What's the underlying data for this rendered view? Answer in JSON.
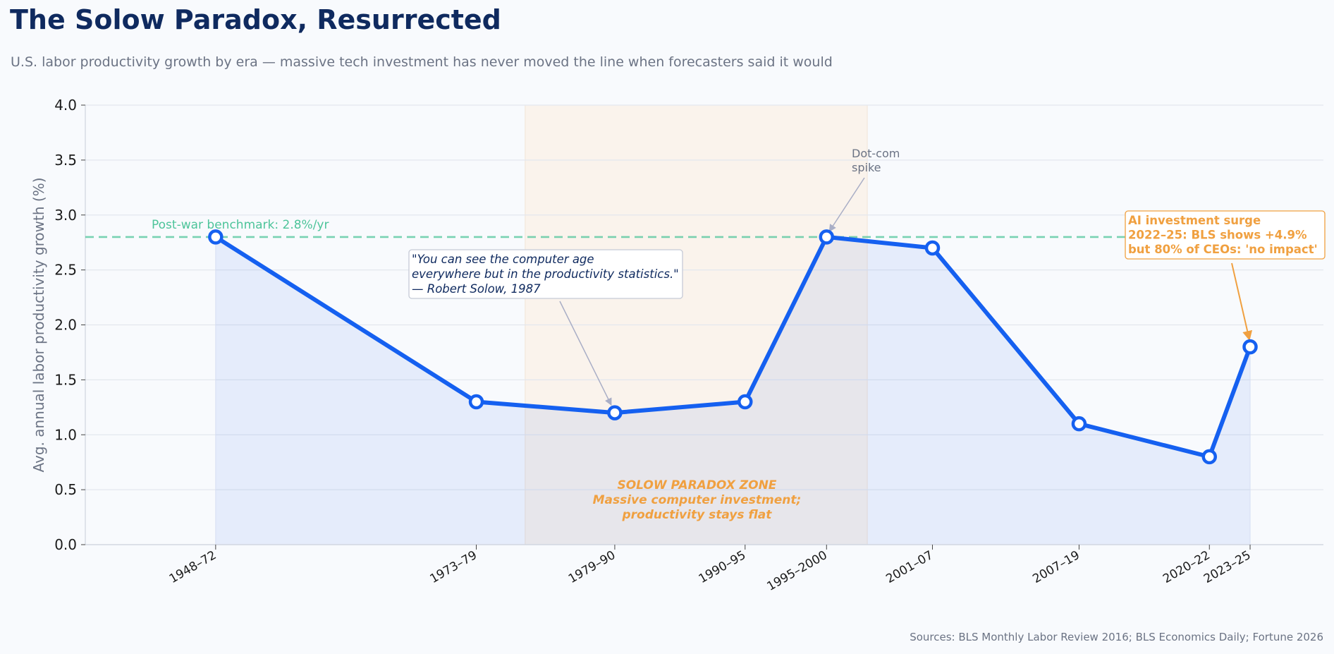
{
  "title": "The Solow Paradox, Resurrected",
  "subtitle": "U.S. labor productivity growth by era — massive tech investment has never moved the line when forecasters said it would",
  "source": "Sources: BLS Monthly Labor Review 2016; BLS Economics Daily; Fortune 2026",
  "colors": {
    "line": "#1560f0",
    "fill": "#e8eefc",
    "benchmark": "#4dc49a",
    "zone": "#faf3ec",
    "zone_text": "#f0a040",
    "title": "#0f2a5f",
    "muted": "#6b7384",
    "grid": "#e3e7ee"
  },
  "chart_data": {
    "type": "line",
    "categories": [
      "1948–72",
      "1973–79",
      "1979–90",
      "1990–95",
      "1995–2000",
      "2001–07",
      "2007–19",
      "2020–22",
      "2023–25"
    ],
    "x": [
      1960,
      1976,
      1984.5,
      1992.5,
      1997.5,
      2004,
      2013,
      2021,
      2023.5
    ],
    "values": [
      2.8,
      1.3,
      1.2,
      1.3,
      2.8,
      2.7,
      1.1,
      0.8,
      1.8
    ],
    "xlim": [
      1952,
      2028
    ],
    "ylim": [
      0,
      4
    ],
    "yticks": [
      "0.0",
      "0.5",
      "1.0",
      "1.5",
      "2.0",
      "2.5",
      "3.0",
      "3.5",
      "4.0"
    ],
    "ylabel": "Avg. annual labor productivity growth (%)",
    "xlabel": "",
    "grid": true,
    "benchmark": {
      "value": 2.8,
      "label": "Post-war benchmark: 2.8%/yr"
    },
    "zone": {
      "x_range": [
        1979,
        2000
      ],
      "lines": [
        "SOLOW PARADOX ZONE",
        "Massive computer investment;",
        "productivity stays flat"
      ]
    },
    "annotations": {
      "quote": {
        "lines": [
          "\"You can see the computer age",
          "everywhere but in the productivity statistics.\"",
          "— Robert Solow, 1987"
        ],
        "target_index": 2
      },
      "dotcom": {
        "lines": [
          "Dot-com",
          "spike"
        ],
        "target_index": 4
      },
      "ai": {
        "lines": [
          "AI investment surge",
          "2022–25: BLS shows +4.9%",
          "but 80% of CEOs: 'no impact'"
        ],
        "target_index": 8
      }
    }
  }
}
